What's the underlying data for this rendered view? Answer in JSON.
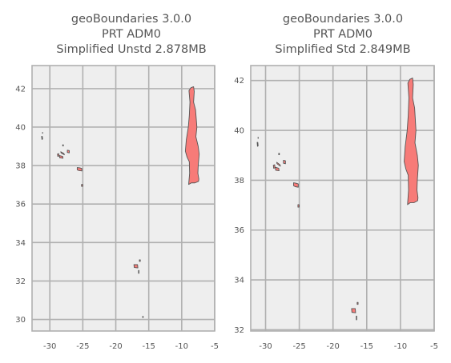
{
  "chart_data": [
    {
      "type": "map",
      "title_lines": [
        "geoBoundaries 3.0.0",
        "PRT ADM0",
        "Simplified Unstd 2.878MB"
      ],
      "xlim": [
        -32.7,
        -5
      ],
      "ylim": [
        29.4,
        43.2
      ],
      "xticks": [
        -30,
        -25,
        -20,
        -15,
        -10,
        -5
      ],
      "yticks": [
        30,
        32,
        34,
        36,
        38,
        40,
        42
      ],
      "grid": true,
      "fill_color": "#f77b78",
      "edge_color": "#555555",
      "background": "#eeeeee",
      "grid_color": "#b0b0b0",
      "shapes": [
        {
          "name": "mainland",
          "coords": [
            [
              -8.9,
              41.9
            ],
            [
              -8.6,
              42.05
            ],
            [
              -8.2,
              42.1
            ],
            [
              -8.1,
              41.85
            ],
            [
              -8.2,
              41.3
            ],
            [
              -7.9,
              40.9
            ],
            [
              -7.7,
              40.0
            ],
            [
              -7.85,
              39.5
            ],
            [
              -7.5,
              39.0
            ],
            [
              -7.35,
              38.6
            ],
            [
              -7.5,
              38.0
            ],
            [
              -7.55,
              37.6
            ],
            [
              -7.4,
              37.3
            ],
            [
              -7.45,
              37.18
            ],
            [
              -8.0,
              37.1
            ],
            [
              -8.55,
              37.1
            ],
            [
              -8.95,
              37.02
            ],
            [
              -8.8,
              37.6
            ],
            [
              -8.85,
              38.2
            ],
            [
              -9.2,
              38.45
            ],
            [
              -9.45,
              38.75
            ],
            [
              -9.3,
              39.35
            ],
            [
              -9.0,
              40.0
            ],
            [
              -8.85,
              40.6
            ],
            [
              -8.75,
              41.3
            ],
            [
              -8.9,
              41.9
            ]
          ]
        },
        {
          "name": "flores",
          "coords": [
            [
              -31.25,
              39.52
            ],
            [
              -31.15,
              39.52
            ],
            [
              -31.1,
              39.38
            ],
            [
              -31.2,
              39.36
            ],
            [
              -31.25,
              39.52
            ]
          ]
        },
        {
          "name": "corvo",
          "coords": [
            [
              -31.12,
              39.72
            ],
            [
              -31.08,
              39.72
            ],
            [
              -31.08,
              39.68
            ],
            [
              -31.12,
              39.68
            ],
            [
              -31.12,
              39.72
            ]
          ]
        },
        {
          "name": "faial",
          "coords": [
            [
              -28.85,
              38.6
            ],
            [
              -28.65,
              38.62
            ],
            [
              -28.6,
              38.5
            ],
            [
              -28.8,
              38.48
            ],
            [
              -28.85,
              38.6
            ]
          ]
        },
        {
          "name": "pico",
          "coords": [
            [
              -28.55,
              38.52
            ],
            [
              -28.05,
              38.48
            ],
            [
              -28.0,
              38.38
            ],
            [
              -28.5,
              38.4
            ],
            [
              -28.55,
              38.52
            ]
          ]
        },
        {
          "name": "sao-jorge",
          "coords": [
            [
              -28.35,
              38.72
            ],
            [
              -27.85,
              38.62
            ],
            [
              -27.8,
              38.56
            ],
            [
              -28.3,
              38.66
            ],
            [
              -28.35,
              38.72
            ]
          ]
        },
        {
          "name": "graciosa",
          "coords": [
            [
              -28.05,
              39.08
            ],
            [
              -27.95,
              39.08
            ],
            [
              -27.95,
              39.02
            ],
            [
              -28.05,
              39.02
            ],
            [
              -28.05,
              39.08
            ]
          ]
        },
        {
          "name": "terceira",
          "coords": [
            [
              -27.35,
              38.8
            ],
            [
              -27.05,
              38.78
            ],
            [
              -27.05,
              38.66
            ],
            [
              -27.35,
              38.68
            ],
            [
              -27.35,
              38.8
            ]
          ]
        },
        {
          "name": "sao-miguel",
          "coords": [
            [
              -25.85,
              37.9
            ],
            [
              -25.45,
              37.88
            ],
            [
              -25.15,
              37.85
            ],
            [
              -25.15,
              37.72
            ],
            [
              -25.6,
              37.74
            ],
            [
              -25.85,
              37.78
            ],
            [
              -25.85,
              37.9
            ]
          ]
        },
        {
          "name": "santa-maria",
          "coords": [
            [
              -25.2,
              37.02
            ],
            [
              -25.02,
              37.02
            ],
            [
              -25.02,
              36.92
            ],
            [
              -25.2,
              36.92
            ],
            [
              -25.2,
              37.02
            ]
          ]
        },
        {
          "name": "madeira",
          "coords": [
            [
              -17.25,
              32.85
            ],
            [
              -16.7,
              32.85
            ],
            [
              -16.65,
              32.68
            ],
            [
              -17.2,
              32.7
            ],
            [
              -17.25,
              32.85
            ]
          ]
        },
        {
          "name": "porto-santo",
          "coords": [
            [
              -16.42,
              33.1
            ],
            [
              -16.28,
              33.1
            ],
            [
              -16.28,
              33.02
            ],
            [
              -16.42,
              33.02
            ],
            [
              -16.42,
              33.1
            ]
          ]
        },
        {
          "name": "desertas",
          "coords": [
            [
              -16.55,
              32.55
            ],
            [
              -16.48,
              32.55
            ],
            [
              -16.48,
              32.4
            ],
            [
              -16.55,
              32.4
            ],
            [
              -16.55,
              32.55
            ]
          ]
        },
        {
          "name": "selvagens",
          "coords": [
            [
              -15.92,
              30.16
            ],
            [
              -15.84,
              30.16
            ],
            [
              -15.84,
              30.1
            ],
            [
              -15.92,
              30.1
            ],
            [
              -15.92,
              30.16
            ]
          ]
        }
      ]
    },
    {
      "type": "map",
      "title_lines": [
        "geoBoundaries 3.0.0",
        "PRT ADM0",
        "Simplified Std 2.849MB"
      ],
      "xlim": [
        -32.2,
        -5
      ],
      "ylim": [
        31.95,
        42.6
      ],
      "xticks": [
        -30,
        -25,
        -20,
        -15,
        -10,
        -5
      ],
      "yticks": [
        32,
        34,
        36,
        38,
        40,
        42
      ],
      "grid": true,
      "fill_color": "#f77b78",
      "edge_color": "#555555",
      "background": "#eeeeee",
      "grid_color": "#b0b0b0",
      "shapes": [
        {
          "name": "mainland",
          "coords": [
            [
              -8.9,
              41.9
            ],
            [
              -8.6,
              42.05
            ],
            [
              -8.2,
              42.1
            ],
            [
              -8.1,
              41.85
            ],
            [
              -8.2,
              41.3
            ],
            [
              -7.9,
              40.9
            ],
            [
              -7.7,
              40.0
            ],
            [
              -7.85,
              39.5
            ],
            [
              -7.5,
              39.0
            ],
            [
              -7.35,
              38.6
            ],
            [
              -7.5,
              38.0
            ],
            [
              -7.55,
              37.6
            ],
            [
              -7.4,
              37.3
            ],
            [
              -7.45,
              37.18
            ],
            [
              -8.0,
              37.1
            ],
            [
              -8.55,
              37.1
            ],
            [
              -8.95,
              37.02
            ],
            [
              -8.8,
              37.6
            ],
            [
              -8.85,
              38.2
            ],
            [
              -9.2,
              38.45
            ],
            [
              -9.45,
              38.75
            ],
            [
              -9.3,
              39.35
            ],
            [
              -9.0,
              40.0
            ],
            [
              -8.85,
              40.6
            ],
            [
              -8.75,
              41.3
            ],
            [
              -8.9,
              41.9
            ]
          ]
        },
        {
          "name": "flores",
          "coords": [
            [
              -31.25,
              39.52
            ],
            [
              -31.15,
              39.52
            ],
            [
              -31.1,
              39.38
            ],
            [
              -31.2,
              39.36
            ],
            [
              -31.25,
              39.52
            ]
          ]
        },
        {
          "name": "corvo",
          "coords": [
            [
              -31.12,
              39.72
            ],
            [
              -31.08,
              39.72
            ],
            [
              -31.08,
              39.68
            ],
            [
              -31.12,
              39.68
            ],
            [
              -31.12,
              39.72
            ]
          ]
        },
        {
          "name": "faial",
          "coords": [
            [
              -28.85,
              38.6
            ],
            [
              -28.65,
              38.62
            ],
            [
              -28.6,
              38.5
            ],
            [
              -28.8,
              38.48
            ],
            [
              -28.85,
              38.6
            ]
          ]
        },
        {
          "name": "pico",
          "coords": [
            [
              -28.55,
              38.52
            ],
            [
              -28.05,
              38.48
            ],
            [
              -28.0,
              38.38
            ],
            [
              -28.5,
              38.4
            ],
            [
              -28.55,
              38.52
            ]
          ]
        },
        {
          "name": "sao-jorge",
          "coords": [
            [
              -28.35,
              38.72
            ],
            [
              -27.85,
              38.62
            ],
            [
              -27.8,
              38.56
            ],
            [
              -28.3,
              38.66
            ],
            [
              -28.35,
              38.72
            ]
          ]
        },
        {
          "name": "graciosa",
          "coords": [
            [
              -28.05,
              39.08
            ],
            [
              -27.95,
              39.08
            ],
            [
              -27.95,
              39.02
            ],
            [
              -28.05,
              39.02
            ],
            [
              -28.05,
              39.08
            ]
          ]
        },
        {
          "name": "terceira",
          "coords": [
            [
              -27.35,
              38.8
            ],
            [
              -27.05,
              38.78
            ],
            [
              -27.05,
              38.66
            ],
            [
              -27.35,
              38.68
            ],
            [
              -27.35,
              38.8
            ]
          ]
        },
        {
          "name": "sao-miguel",
          "coords": [
            [
              -25.85,
              37.9
            ],
            [
              -25.45,
              37.88
            ],
            [
              -25.15,
              37.85
            ],
            [
              -25.15,
              37.72
            ],
            [
              -25.6,
              37.74
            ],
            [
              -25.85,
              37.78
            ],
            [
              -25.85,
              37.9
            ]
          ]
        },
        {
          "name": "santa-maria",
          "coords": [
            [
              -25.2,
              37.02
            ],
            [
              -25.02,
              37.02
            ],
            [
              -25.02,
              36.92
            ],
            [
              -25.2,
              36.92
            ],
            [
              -25.2,
              37.02
            ]
          ]
        },
        {
          "name": "madeira",
          "coords": [
            [
              -17.25,
              32.85
            ],
            [
              -16.7,
              32.85
            ],
            [
              -16.65,
              32.68
            ],
            [
              -17.2,
              32.7
            ],
            [
              -17.25,
              32.85
            ]
          ]
        },
        {
          "name": "porto-santo",
          "coords": [
            [
              -16.42,
              33.1
            ],
            [
              -16.28,
              33.1
            ],
            [
              -16.28,
              33.02
            ],
            [
              -16.42,
              33.02
            ],
            [
              -16.42,
              33.1
            ]
          ]
        },
        {
          "name": "desertas",
          "coords": [
            [
              -16.55,
              32.55
            ],
            [
              -16.48,
              32.55
            ],
            [
              -16.48,
              32.4
            ],
            [
              -16.55,
              32.4
            ],
            [
              -16.55,
              32.55
            ]
          ]
        }
      ]
    }
  ]
}
